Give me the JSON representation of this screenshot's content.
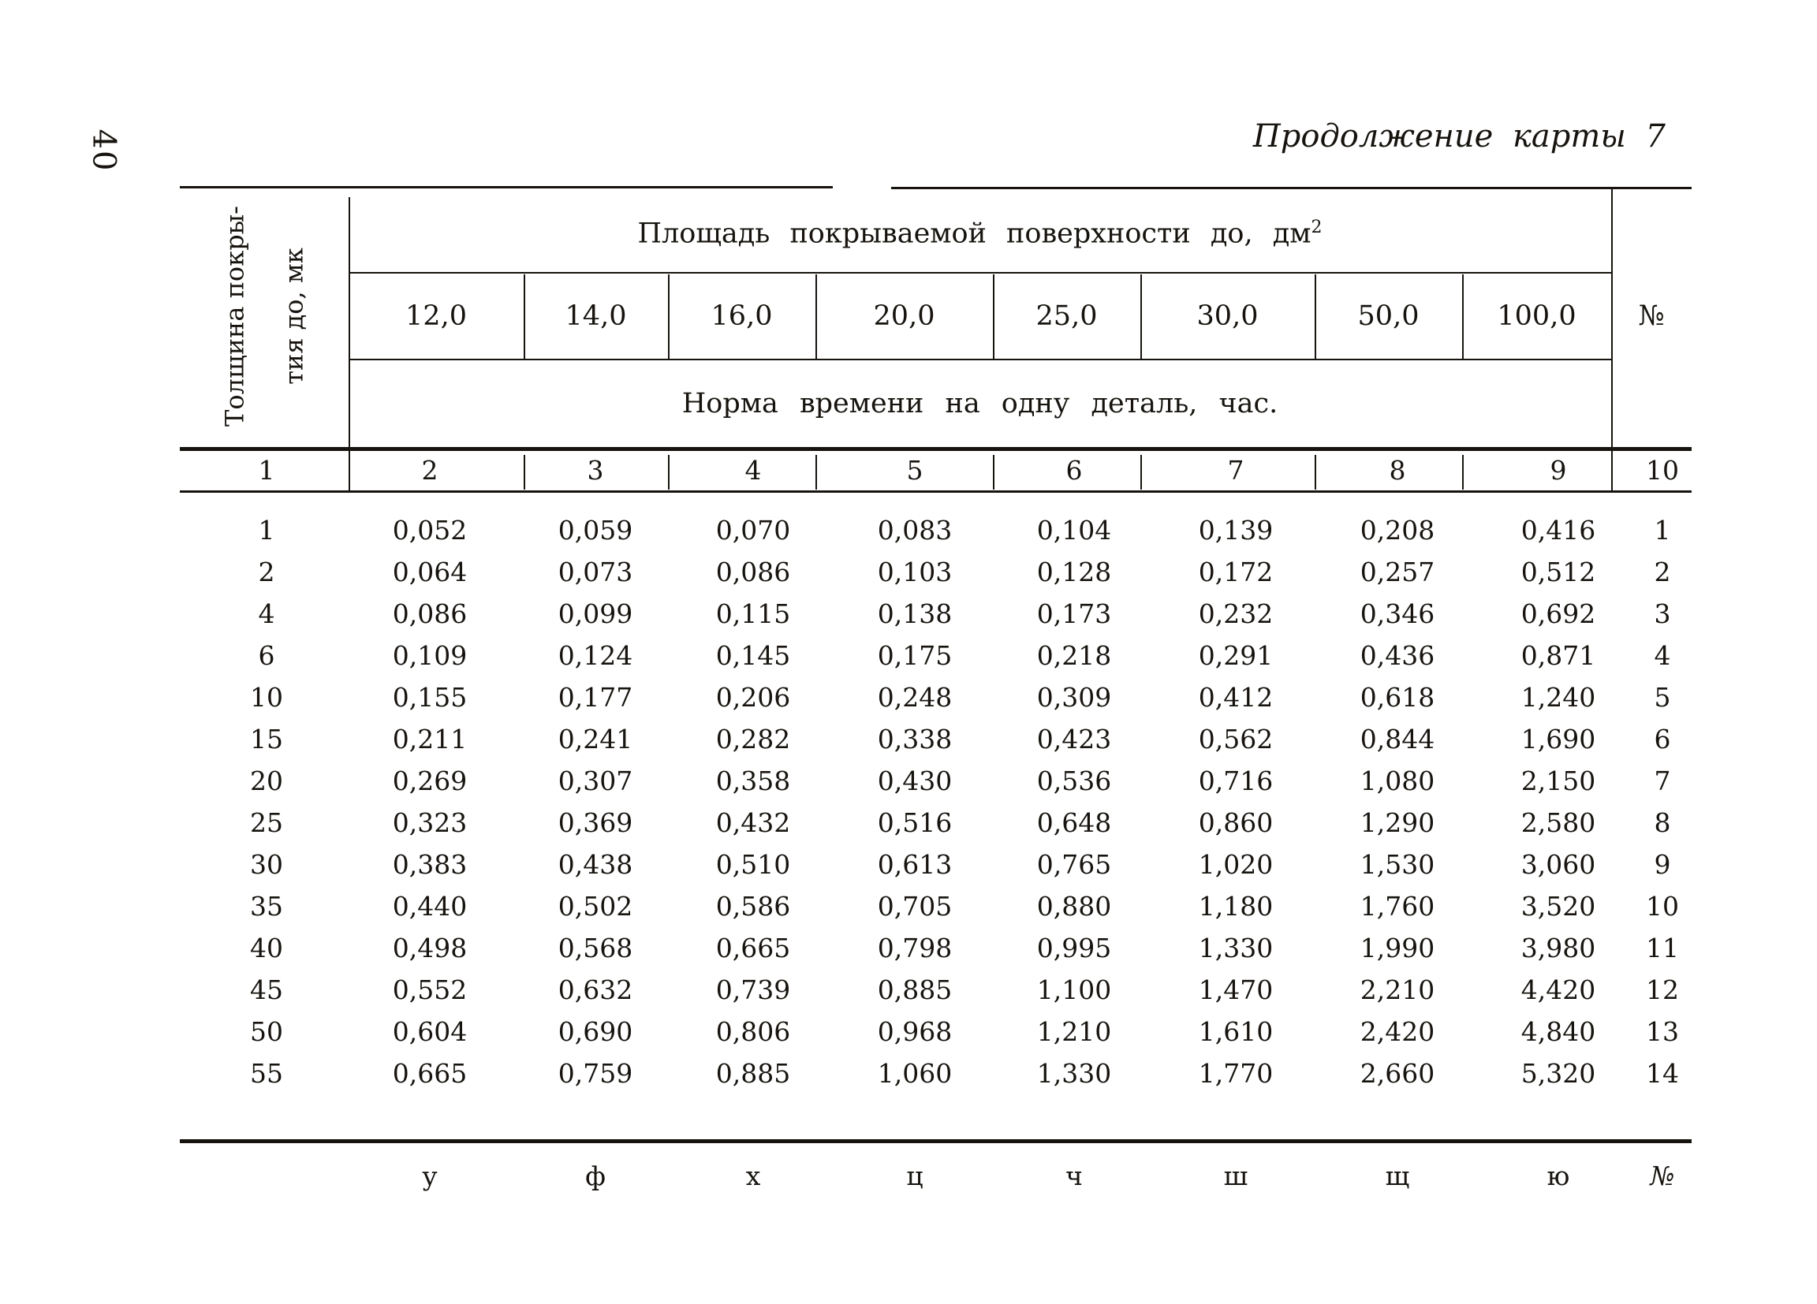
{
  "colors": {
    "ink": "#17140f",
    "paper": "#ffffff"
  },
  "page": {
    "number": "40"
  },
  "title": "Продолжение карты 7",
  "table": {
    "row_header": {
      "line1": "Толщина покры-",
      "line2": "тия до, мк"
    },
    "col_group_header": {
      "prefix": "Площадь покрываемой поверхности до, дм",
      "sup": "2"
    },
    "area_values": [
      "12,0",
      "14,0",
      "16,0",
      "20,0",
      "25,0",
      "30,0",
      "50,0",
      "100,0"
    ],
    "number_col_header": "№",
    "subheader": "Норма времени на одну деталь, час.",
    "column_numbers": [
      "1",
      "2",
      "3",
      "4",
      "5",
      "6",
      "7",
      "8",
      "9",
      "10"
    ],
    "rows": [
      {
        "thickness": "1",
        "values": [
          "0,052",
          "0,059",
          "0,070",
          "0,083",
          "0,104",
          "0,139",
          "0,208",
          "0,416"
        ],
        "num": "1"
      },
      {
        "thickness": "2",
        "values": [
          "0,064",
          "0,073",
          "0,086",
          "0,103",
          "0,128",
          "0,172",
          "0,257",
          "0,512"
        ],
        "num": "2"
      },
      {
        "thickness": "4",
        "values": [
          "0,086",
          "0,099",
          "0,115",
          "0,138",
          "0,173",
          "0,232",
          "0,346",
          "0,692"
        ],
        "num": "3"
      },
      {
        "thickness": "6",
        "values": [
          "0,109",
          "0,124",
          "0,145",
          "0,175",
          "0,218",
          "0,291",
          "0,436",
          "0,871"
        ],
        "num": "4"
      },
      {
        "thickness": "10",
        "values": [
          "0,155",
          "0,177",
          "0,206",
          "0,248",
          "0,309",
          "0,412",
          "0,618",
          "1,240"
        ],
        "num": "5"
      },
      {
        "thickness": "15",
        "values": [
          "0,211",
          "0,241",
          "0,282",
          "0,338",
          "0,423",
          "0,562",
          "0,844",
          "1,690"
        ],
        "num": "6"
      },
      {
        "thickness": "20",
        "values": [
          "0,269",
          "0,307",
          "0,358",
          "0,430",
          "0,536",
          "0,716",
          "1,080",
          "2,150"
        ],
        "num": "7"
      },
      {
        "thickness": "25",
        "values": [
          "0,323",
          "0,369",
          "0,432",
          "0,516",
          "0,648",
          "0,860",
          "1,290",
          "2,580"
        ],
        "num": "8"
      },
      {
        "thickness": "30",
        "values": [
          "0,383",
          "0,438",
          "0,510",
          "0,613",
          "0,765",
          "1,020",
          "1,530",
          "3,060"
        ],
        "num": "9"
      },
      {
        "thickness": "35",
        "values": [
          "0,440",
          "0,502",
          "0,586",
          "0,705",
          "0,880",
          "1,180",
          "1,760",
          "3,520"
        ],
        "num": "10"
      },
      {
        "thickness": "40",
        "values": [
          "0,498",
          "0,568",
          "0,665",
          "0,798",
          "0,995",
          "1,330",
          "1,990",
          "3,980"
        ],
        "num": "11"
      },
      {
        "thickness": "45",
        "values": [
          "0,552",
          "0,632",
          "0,739",
          "0,885",
          "1,100",
          "1,470",
          "2,210",
          "4,420"
        ],
        "num": "12"
      },
      {
        "thickness": "50",
        "values": [
          "0,604",
          "0,690",
          "0,806",
          "0,968",
          "1,210",
          "1,610",
          "2,420",
          "4,840"
        ],
        "num": "13"
      },
      {
        "thickness": "55",
        "values": [
          "0,665",
          "0,759",
          "0,885",
          "1,060",
          "1,330",
          "1,770",
          "2,660",
          "5,320"
        ],
        "num": "14"
      }
    ],
    "footer_letters": [
      "у",
      "ф",
      "х",
      "ц",
      "ч",
      "ш",
      "щ",
      "ю",
      "№"
    ]
  }
}
